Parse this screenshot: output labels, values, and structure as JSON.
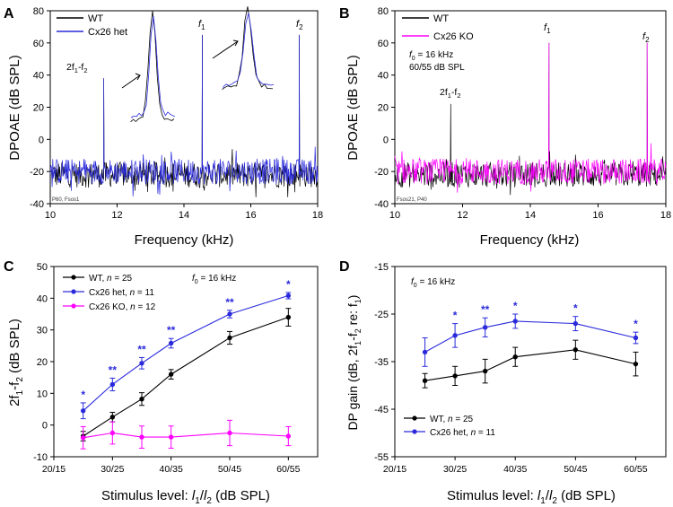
{
  "chart_data": [
    {
      "panel": "A",
      "type": "line",
      "xlabel": "Frequency (kHz)",
      "ylabel": "DPOAE (dB SPL)",
      "xlim": [
        10,
        18
      ],
      "ylim": [
        -40,
        80
      ],
      "xticks": [
        10,
        12,
        14,
        16,
        18
      ],
      "yticks": [
        -40,
        -20,
        0,
        20,
        40,
        60,
        80
      ],
      "legend": [
        "WT",
        "Cx26 het"
      ],
      "colors": [
        "#000000",
        "#2a2adc"
      ],
      "noise_floor_db": -20,
      "peaks": [
        {
          "label": "2f1-f2",
          "freq": 11.6,
          "level": 38
        },
        {
          "label": "f1",
          "freq": 14.55,
          "level": 65
        },
        {
          "label": "f2",
          "freq": 17.45,
          "level": 65
        }
      ],
      "annotation_small": "P60, Fsos1"
    },
    {
      "panel": "B",
      "type": "line",
      "xlabel": "Frequency (kHz)",
      "ylabel": "DPOAE (dB SPL)",
      "xlim": [
        10,
        18
      ],
      "ylim": [
        -40,
        80
      ],
      "xticks": [
        10,
        12,
        14,
        16,
        18
      ],
      "yticks": [
        -40,
        -20,
        0,
        20,
        40,
        60,
        80
      ],
      "legend": [
        "WT",
        "Cx26 KO"
      ],
      "colors": [
        "#000000",
        "#ff00ff"
      ],
      "noise_floor_db": -20,
      "peaks": [
        {
          "label": "2f1-f2",
          "freq": 11.65,
          "level": 22
        },
        {
          "label": "f1",
          "freq": 14.55,
          "level": 60
        },
        {
          "label": "f2",
          "freq": 17.45,
          "level": 60
        }
      ],
      "annotation_line1": "f0 = 16 kHz",
      "annotation_line2": "60/55 dB SPL",
      "annotation_small": "Fsos21, P40"
    },
    {
      "panel": "C",
      "type": "line",
      "xlabel": "Stimulus level: l1/l2 (dB SPL)",
      "ylabel": "2f1-f2 (dB SPL)",
      "categories": [
        "20/15",
        "30/25",
        "40/35",
        "50/45",
        "60/55"
      ],
      "x": [
        25,
        30,
        35,
        40,
        50,
        60
      ],
      "xlim": [
        20,
        65
      ],
      "ylim": [
        -10,
        50
      ],
      "yticks": [
        -10,
        0,
        10,
        20,
        30,
        40,
        50
      ],
      "annotation": "f0 = 16 kHz",
      "series": [
        {
          "name": "WT, n = 25",
          "color": "#000000",
          "values": [
            -3.5,
            2.5,
            8.2,
            16.0,
            27.5,
            34.0
          ],
          "err": [
            1.5,
            1.5,
            2.0,
            1.5,
            2.0,
            2.8
          ]
        },
        {
          "name": "Cx26 het, n = 11",
          "color": "#2a2adc",
          "values": [
            4.5,
            12.8,
            19.5,
            25.8,
            35.0,
            40.8
          ],
          "err": [
            2.5,
            2.0,
            1.8,
            1.5,
            1.2,
            1.0
          ]
        },
        {
          "name": "Cx26 KO, n = 12",
          "color": "#ff00ff",
          "values": [
            -4.0,
            -2.5,
            -3.8,
            -3.8,
            -2.5,
            -3.5
          ],
          "err": [
            3.5,
            3.5,
            3.5,
            3.5,
            4.0,
            3.0
          ]
        }
      ],
      "significance": [
        "*",
        "**",
        "**",
        "**",
        "**",
        "*"
      ]
    },
    {
      "panel": "D",
      "type": "line",
      "xlabel": "Stimulus level: l1/l2 (dB SPL)",
      "ylabel": "DP gain (dB, 2f1-f2 re: f1)",
      "categories": [
        "20/15",
        "30/25",
        "40/35",
        "50/45",
        "60/55"
      ],
      "x": [
        25,
        30,
        35,
        40,
        50,
        60
      ],
      "xlim": [
        20,
        65
      ],
      "ylim": [
        -55,
        -15
      ],
      "yticks": [
        -55,
        -45,
        -35,
        -25,
        -15
      ],
      "annotation": "f0 = 16 kHz",
      "series": [
        {
          "name": "WT, n = 25",
          "color": "#000000",
          "values": [
            -39.0,
            -38.0,
            -37.0,
            -34.0,
            -32.5,
            -35.5
          ],
          "err": [
            1.5,
            2.0,
            2.5,
            2.0,
            2.0,
            2.5
          ]
        },
        {
          "name": "Cx26 het, n = 11",
          "color": "#2a2adc",
          "values": [
            -33.0,
            -29.5,
            -27.8,
            -26.5,
            -27.0,
            -30.0
          ],
          "err": [
            3.0,
            2.5,
            2.0,
            1.5,
            1.5,
            1.2
          ]
        }
      ],
      "significance": [
        "",
        "*",
        "**",
        "*",
        "*",
        "*"
      ]
    }
  ],
  "panels": {
    "A": "A",
    "B": "B",
    "C": "C",
    "D": "D"
  },
  "labels": {
    "f1_base": "f",
    "f1_sub": "1",
    "f2_base": "f",
    "f2_sub": "2",
    "dp_f": "2f",
    "dp_1": "1",
    "dp_mid": "-f",
    "dp_2": "2",
    "f0_base": "f",
    "f0_sub": "0",
    "f0_rest": " = 16 kHz",
    "level_line": "60/55 dB SPL",
    "a_small": "P60, Fsos1",
    "b_small": "Fsos21, P40",
    "freq_xlabel": "Frequency (kHz)",
    "dpoae_ylabel": "DPOAE (dB SPL)",
    "stim_pre": "Stimulus level: ",
    "stim_l": "l",
    "stim_1": "1",
    "stim_slash": "/",
    "stim_2": "2",
    "stim_post": " (dB SPL)",
    "c_y_pre": "2f",
    "c_y_1": "1",
    "c_y_mid": "-f",
    "c_y_2": "2",
    "c_y_post": " (dB SPL)",
    "d_y_pre": "DP gain (dB, 2f",
    "d_y_1": "1",
    "d_y_mid": "-f",
    "d_y_2": "2",
    "d_y_re": " re: f",
    "d_y_r1": "1",
    "d_y_post": ")",
    "leg_wt": "WT",
    "leg_het": "Cx26 het",
    "leg_ko": "Cx26 KO",
    "leg_wt_c": "WT, ",
    "leg_het_c": "Cx26 het, ",
    "leg_ko_c": "Cx26 KO, ",
    "n_italic": "n",
    "n25": " = 25",
    "n11": " = 11",
    "n12": " = 12"
  }
}
